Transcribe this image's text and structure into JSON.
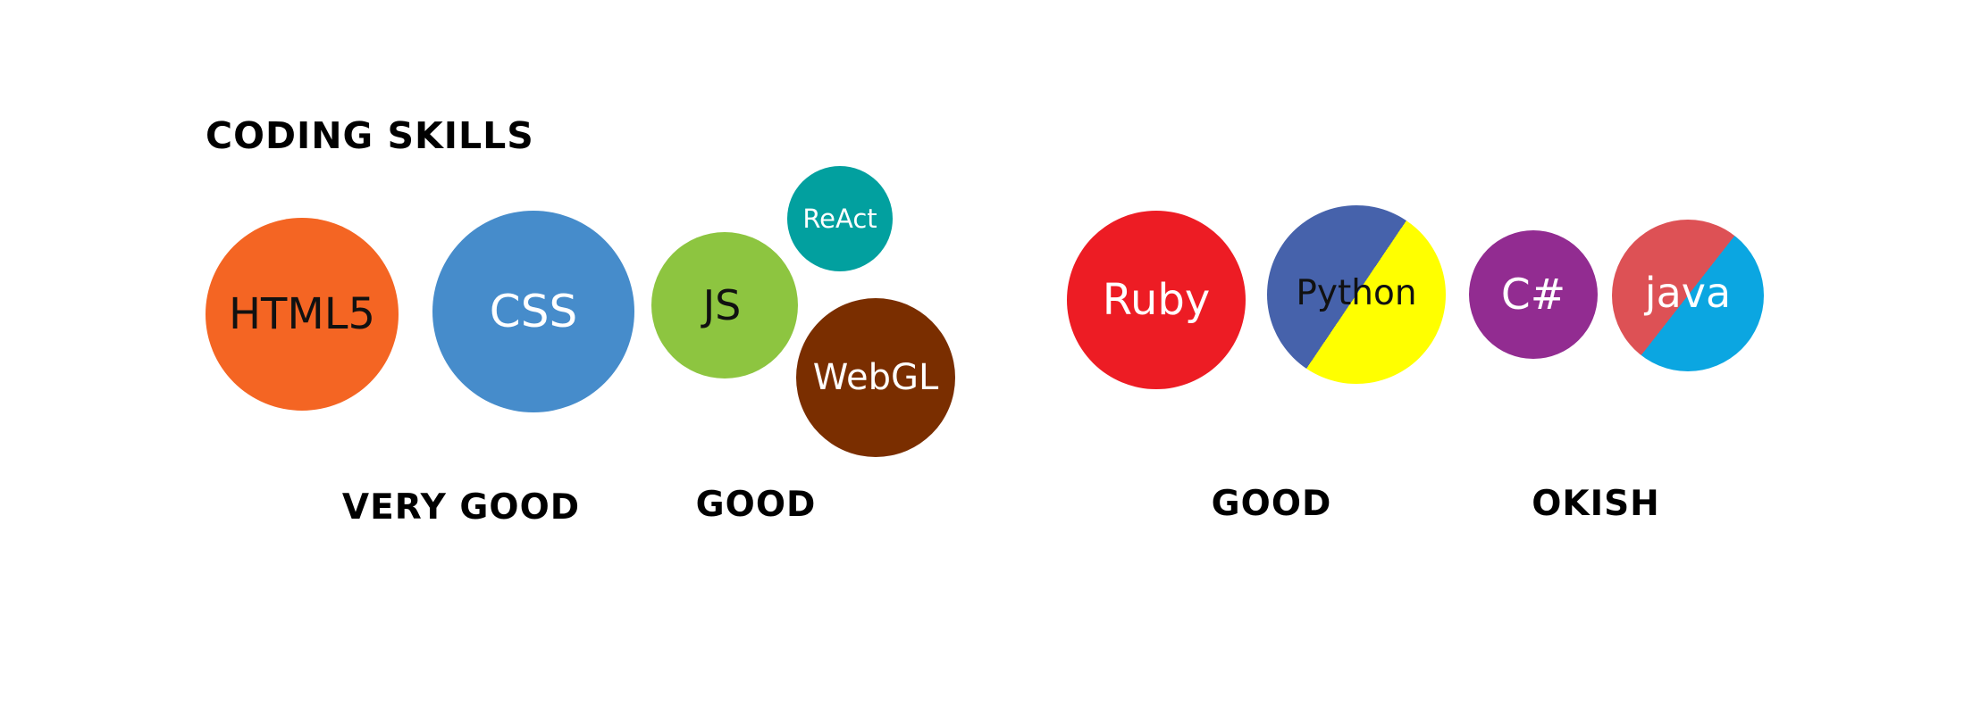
{
  "title": "CODING SKILLS",
  "skills": {
    "html5": {
      "label": "HTML5",
      "color": "#f46523",
      "text_color": "#111111"
    },
    "css": {
      "label": "CSS",
      "color": "#468ccb",
      "text_color": "#ffffff"
    },
    "js": {
      "label": "JS",
      "color": "#8dc540",
      "text_color": "#111111"
    },
    "react": {
      "label": "ReAct",
      "color": "#02a09f",
      "text_color": "#ffffff"
    },
    "webgl": {
      "label": "WebGL",
      "color": "#7a2e00",
      "text_color": "#ffffff"
    },
    "ruby": {
      "label": "Ruby",
      "color": "#ed1c24",
      "text_color": "#ffffff"
    },
    "python": {
      "label": "Python",
      "colors": [
        "#4662ab",
        "#ffff00"
      ],
      "text_color": "#111111"
    },
    "csharp": {
      "label": "C#",
      "color": "#922c91",
      "text_color": "#ffffff"
    },
    "java": {
      "label": "java",
      "colors": [
        "#dd5155",
        "#0ba6e1"
      ],
      "text_color": "#ffffff"
    }
  },
  "levels": {
    "very_good": "VERY GOOD",
    "good_1": "GOOD",
    "good_2": "GOOD",
    "okish": "OKISH"
  }
}
